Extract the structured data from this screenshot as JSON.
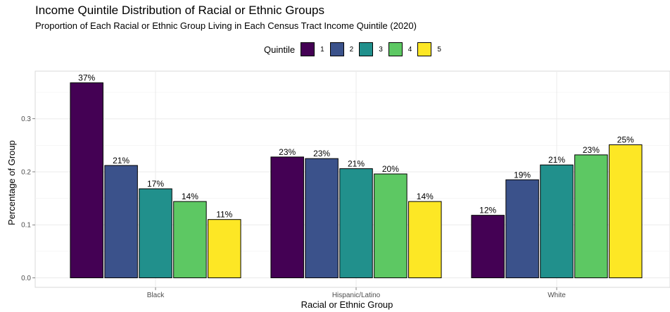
{
  "chart_data": {
    "type": "bar",
    "title": "Income Quintile Distribution of Racial or Ethnic Groups",
    "subtitle": "Proportion of Each Racial or Ethnic Group Living in Each Census Tract Income Quintile (2020)",
    "xlabel": "Racial or Ethnic Group",
    "ylabel": "Percentage of Group",
    "ylim": [
      -0.018,
      0.39
    ],
    "yticks": [
      "0.0",
      "0.1",
      "0.2",
      "0.3"
    ],
    "ytick_values": [
      0.0,
      0.1,
      0.2,
      0.3
    ],
    "grid": true,
    "legend_position": "top",
    "legend_title": "Quintile",
    "categories": [
      "Black",
      "Hispanic/Latino",
      "White"
    ],
    "series": [
      {
        "name": "1",
        "color": "#440154",
        "values": [
          0.368,
          0.228,
          0.118
        ],
        "labels": [
          "37%",
          "23%",
          "12%"
        ]
      },
      {
        "name": "2",
        "color": "#3B528B",
        "values": [
          0.212,
          0.225,
          0.185
        ],
        "labels": [
          "21%",
          "23%",
          "19%"
        ]
      },
      {
        "name": "3",
        "color": "#21908C",
        "values": [
          0.168,
          0.206,
          0.213
        ],
        "labels": [
          "17%",
          "21%",
          "21%"
        ]
      },
      {
        "name": "4",
        "color": "#5DC863",
        "values": [
          0.144,
          0.196,
          0.232
        ],
        "labels": [
          "14%",
          "20%",
          "23%"
        ]
      },
      {
        "name": "5",
        "color": "#FDE725",
        "values": [
          0.11,
          0.144,
          0.251
        ],
        "labels": [
          "11%",
          "14%",
          "25%"
        ]
      }
    ]
  }
}
